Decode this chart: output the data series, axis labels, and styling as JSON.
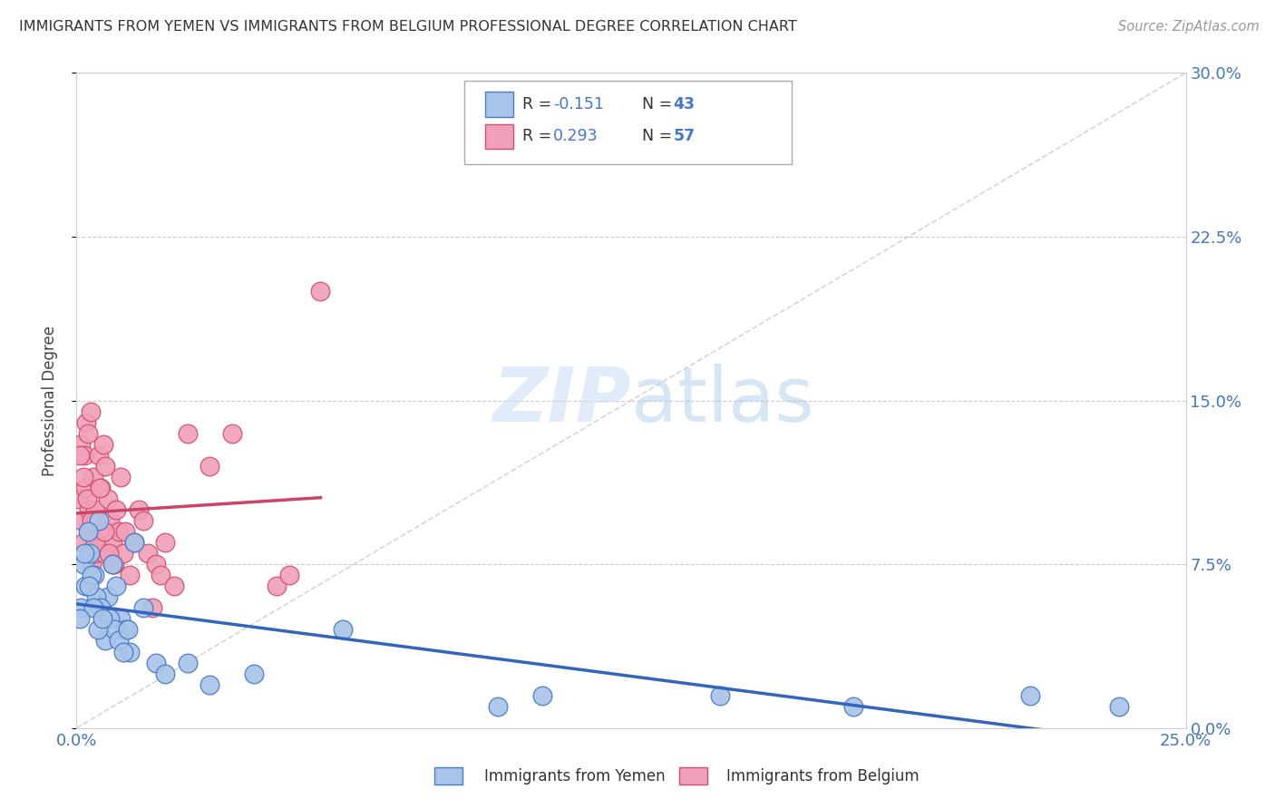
{
  "title": "IMMIGRANTS FROM YEMEN VS IMMIGRANTS FROM BELGIUM PROFESSIONAL DEGREE CORRELATION CHART",
  "source": "Source: ZipAtlas.com",
  "ylabel": "Professional Degree",
  "ytick_vals": [
    0.0,
    7.5,
    15.0,
    22.5,
    30.0
  ],
  "xlim": [
    0.0,
    25.0
  ],
  "ylim": [
    0.0,
    30.0
  ],
  "legend_R_yemen": "-0.151",
  "legend_N_yemen": "43",
  "legend_R_belgium": "0.293",
  "legend_N_belgium": "57",
  "color_yemen_face": "#a8c4e8",
  "color_belgium_face": "#f0a0b8",
  "color_yemen_edge": "#4a7cc7",
  "color_belgium_edge": "#d45070",
  "color_yemen_line": "#3366bb",
  "color_belgium_line": "#cc4466",
  "color_trend_dashed": "#cccccc",
  "background_color": "#ffffff",
  "yemen_x": [
    0.1,
    0.2,
    0.15,
    0.3,
    0.4,
    0.5,
    0.6,
    0.7,
    0.8,
    0.9,
    1.0,
    1.1,
    1.2,
    1.3,
    1.5,
    0.25,
    0.35,
    0.45,
    0.55,
    0.65,
    0.75,
    0.85,
    0.95,
    1.05,
    1.15,
    0.18,
    0.28,
    0.38,
    0.48,
    0.58,
    1.8,
    2.0,
    2.5,
    3.0,
    4.0,
    6.0,
    9.5,
    10.5,
    14.5,
    17.5,
    21.5,
    23.5,
    0.08
  ],
  "yemen_y": [
    5.5,
    6.5,
    7.5,
    8.0,
    7.0,
    9.5,
    5.0,
    6.0,
    7.5,
    6.5,
    5.0,
    4.5,
    3.5,
    8.5,
    5.5,
    9.0,
    7.0,
    6.0,
    5.5,
    4.0,
    5.0,
    4.5,
    4.0,
    3.5,
    4.5,
    8.0,
    6.5,
    5.5,
    4.5,
    5.0,
    3.0,
    2.5,
    3.0,
    2.0,
    2.5,
    4.5,
    1.0,
    1.5,
    1.5,
    1.0,
    1.5,
    1.0,
    5.0
  ],
  "belgium_x": [
    0.05,
    0.1,
    0.12,
    0.15,
    0.18,
    0.2,
    0.22,
    0.25,
    0.28,
    0.3,
    0.32,
    0.35,
    0.38,
    0.4,
    0.42,
    0.45,
    0.48,
    0.5,
    0.52,
    0.55,
    0.6,
    0.62,
    0.65,
    0.7,
    0.75,
    0.8,
    0.85,
    0.9,
    0.95,
    1.0,
    1.05,
    1.1,
    1.2,
    1.3,
    1.4,
    1.5,
    1.6,
    1.7,
    1.8,
    1.9,
    2.0,
    2.2,
    2.5,
    3.0,
    3.5,
    4.5,
    4.8,
    0.08,
    0.16,
    0.24,
    0.33,
    0.43,
    0.53,
    0.63,
    0.73,
    0.82,
    5.5
  ],
  "belgium_y": [
    10.5,
    13.0,
    9.5,
    8.5,
    12.5,
    11.0,
    14.0,
    13.5,
    10.0,
    9.0,
    14.5,
    7.5,
    11.5,
    8.0,
    10.0,
    9.5,
    8.5,
    12.5,
    9.0,
    11.0,
    13.0,
    8.0,
    12.0,
    10.5,
    9.5,
    8.5,
    7.5,
    10.0,
    9.0,
    11.5,
    8.0,
    9.0,
    7.0,
    8.5,
    10.0,
    9.5,
    8.0,
    5.5,
    7.5,
    7.0,
    8.5,
    6.5,
    13.5,
    12.0,
    13.5,
    6.5,
    7.0,
    12.5,
    11.5,
    10.5,
    9.5,
    8.5,
    11.0,
    9.0,
    8.0,
    7.5,
    20.0
  ]
}
